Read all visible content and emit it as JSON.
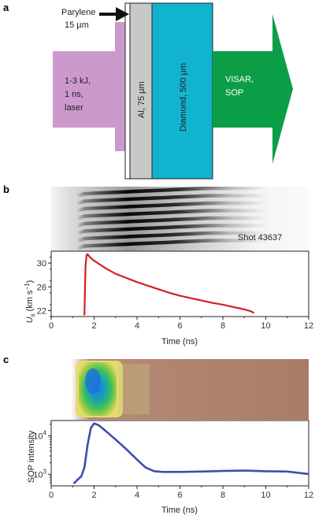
{
  "panel_a": {
    "letter": "a",
    "parylene_label": "Parylene",
    "parylene_thickness": "15 µm",
    "laser_label": [
      "1-3 kJ,",
      "1 ns,",
      "laser"
    ],
    "al_label": "Al, 75 µm",
    "diamond_label": "Diamond, 500 µm",
    "diag_label": [
      "VISAR,",
      "SOP"
    ],
    "colors": {
      "laser": "#cc99cc",
      "al": "#c8c8c8",
      "diamond": "#12b3cf",
      "diag": "#0c9e47"
    }
  },
  "panel_b": {
    "letter": "b",
    "shot_label": "Shot 43637",
    "ylabel_main": "U",
    "ylabel_sub": "s",
    "ylabel_unit": "(km s",
    "ylabel_exp": "−1",
    "ylabel_close": ")",
    "xlabel": "Time (ns)"
  },
  "panel_c": {
    "letter": "c",
    "ylabel": "SOP intensity",
    "xlabel": "Time (ns)"
  },
  "chart_data": [
    {
      "type": "line",
      "xlabel": "Time (ns)",
      "ylabel": "Us (km s−1)",
      "xlim": [
        0,
        12
      ],
      "ylim": [
        21,
        32
      ],
      "x_ticks": [
        "0",
        "2",
        "4",
        "6",
        "8",
        "10",
        "12"
      ],
      "y_ticks": [
        "22",
        "26",
        "30"
      ],
      "series": [
        {
          "color": "#d42020",
          "x": [
            1.55,
            1.6,
            1.65,
            1.7,
            1.8,
            2.0,
            2.5,
            3.0,
            3.5,
            4.0,
            4.5,
            5.0,
            5.5,
            6.0,
            6.5,
            7.0,
            7.5,
            8.0,
            8.5,
            9.0,
            9.3,
            9.45
          ],
          "y": [
            21.2,
            29.5,
            31.4,
            31.5,
            31.0,
            30.4,
            29.2,
            28.2,
            27.5,
            26.8,
            26.2,
            25.6,
            25.0,
            24.5,
            24.1,
            23.7,
            23.3,
            23.0,
            22.6,
            22.2,
            21.9,
            21.6
          ]
        }
      ]
    },
    {
      "type": "line",
      "xlabel": "Time (ns)",
      "ylabel": "SOP intensity",
      "xlim": [
        0,
        12
      ],
      "y_scale": "log",
      "ylim": [
        500,
        25000
      ],
      "x_ticks": [
        "0",
        "2",
        "4",
        "6",
        "8",
        "10",
        "12"
      ],
      "y_ticks": [
        "10^3",
        "10^4"
      ],
      "series": [
        {
          "color": "#3d4db0",
          "x": [
            1.05,
            1.2,
            1.4,
            1.55,
            1.7,
            1.85,
            2.0,
            2.2,
            2.5,
            3.0,
            3.5,
            4.0,
            4.4,
            4.8,
            5.2,
            6.0,
            7.0,
            8.0,
            9.0,
            10.0,
            11.0,
            12.0
          ],
          "y": [
            570,
            700,
            880,
            1500,
            6000,
            16000,
            21000,
            19000,
            14000,
            8000,
            4500,
            2400,
            1500,
            1200,
            1150,
            1150,
            1180,
            1220,
            1250,
            1200,
            1180,
            1020
          ]
        }
      ]
    }
  ]
}
